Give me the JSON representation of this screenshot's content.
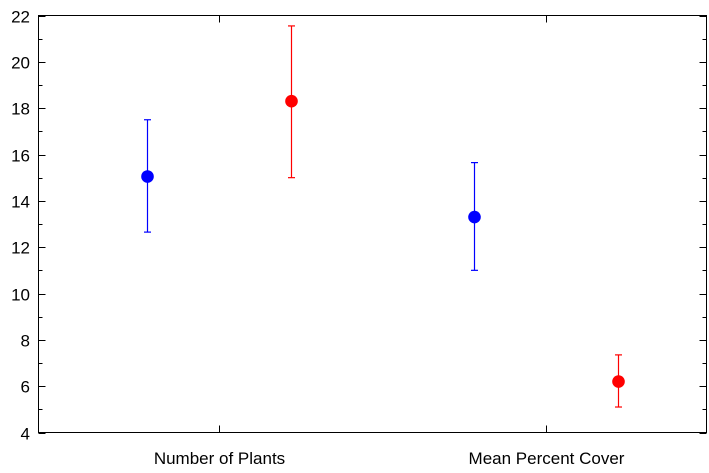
{
  "chart_data": {
    "type": "scatter",
    "title": "",
    "xlabel": "",
    "ylabel": "",
    "categories": [
      "Number of Plants",
      "Mean Percent Cover"
    ],
    "ylim": [
      4,
      22
    ],
    "yticks": [
      4,
      6,
      8,
      10,
      12,
      14,
      16,
      18,
      20,
      22
    ],
    "grid": false,
    "legend": "none",
    "series": [
      {
        "color": "#0000ff",
        "values": [
          15.05,
          13.3
        ],
        "lower": [
          12.65,
          11.0
        ],
        "upper": [
          17.5,
          15.65
        ]
      },
      {
        "color": "#ff0000",
        "values": [
          18.3,
          6.2
        ],
        "lower": [
          15.0,
          5.1
        ],
        "upper": [
          21.55,
          7.35
        ]
      }
    ]
  }
}
